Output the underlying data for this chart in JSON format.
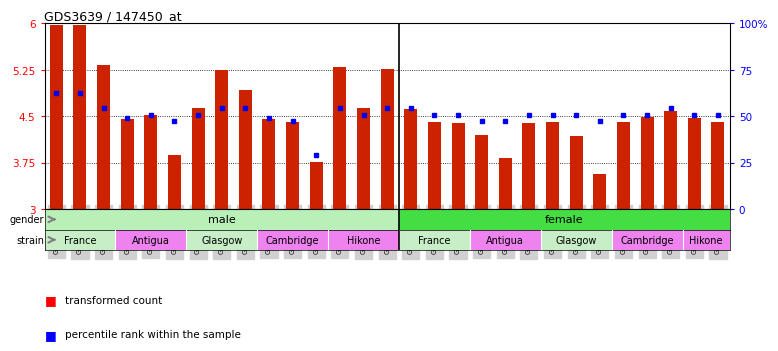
{
  "title": "GDS3639 / 147450_at",
  "samples": [
    "GSM231205",
    "GSM231206",
    "GSM231207",
    "GSM231211",
    "GSM231212",
    "GSM231213",
    "GSM231217",
    "GSM231218",
    "GSM231219",
    "GSM231223",
    "GSM231224",
    "GSM231225",
    "GSM231229",
    "GSM231230",
    "GSM231231",
    "GSM231208",
    "GSM231209",
    "GSM231210",
    "GSM231214",
    "GSM231215",
    "GSM231216",
    "GSM231220",
    "GSM231221",
    "GSM231222",
    "GSM231226",
    "GSM231227",
    "GSM231228",
    "GSM231232",
    "GSM231233"
  ],
  "bar_values": [
    5.97,
    5.97,
    5.33,
    4.45,
    4.52,
    3.87,
    4.63,
    5.25,
    4.93,
    4.45,
    4.41,
    3.77,
    5.29,
    4.63,
    5.27,
    4.62,
    4.41,
    4.39,
    4.2,
    3.82,
    4.39,
    4.41,
    4.18,
    3.57,
    4.41,
    4.49,
    4.58,
    4.48,
    4.41
  ],
  "percentile_values": [
    4.87,
    4.87,
    4.63,
    4.48,
    4.52,
    4.43,
    4.52,
    4.63,
    4.63,
    4.47,
    4.43,
    3.87,
    4.63,
    4.52,
    4.63,
    4.63,
    4.52,
    4.52,
    4.43,
    4.43,
    4.52,
    4.52,
    4.52,
    4.43,
    4.52,
    4.52,
    4.63,
    4.52,
    4.52
  ],
  "y_min": 3.0,
  "y_max": 6.0,
  "y_ticks": [
    3.0,
    3.75,
    4.5,
    5.25,
    6.0
  ],
  "y_tick_labels": [
    "3",
    "3.75",
    "4.5",
    "5.25",
    "6"
  ],
  "right_y_ticks": [
    0,
    25,
    50,
    75,
    100
  ],
  "right_y_tick_labels": [
    "0",
    "25",
    "50",
    "75",
    "100%"
  ],
  "strain_groups": [
    {
      "label": "France",
      "start": 0,
      "end": 3,
      "color": "#C8EEC8"
    },
    {
      "label": "Antigua",
      "start": 3,
      "end": 6,
      "color": "#EE82EE"
    },
    {
      "label": "Glasgow",
      "start": 6,
      "end": 9,
      "color": "#C8EEC8"
    },
    {
      "label": "Cambridge",
      "start": 9,
      "end": 12,
      "color": "#EE82EE"
    },
    {
      "label": "Hikone",
      "start": 12,
      "end": 15,
      "color": "#EE82EE"
    },
    {
      "label": "France",
      "start": 15,
      "end": 18,
      "color": "#C8EEC8"
    },
    {
      "label": "Antigua",
      "start": 18,
      "end": 21,
      "color": "#EE82EE"
    },
    {
      "label": "Glasgow",
      "start": 21,
      "end": 24,
      "color": "#C8EEC8"
    },
    {
      "label": "Cambridge",
      "start": 24,
      "end": 27,
      "color": "#EE82EE"
    },
    {
      "label": "Hikone",
      "start": 27,
      "end": 29,
      "color": "#EE82EE"
    }
  ],
  "bar_color": "#CC2200",
  "dot_color": "#0000EE",
  "male_color": "#B8F0B8",
  "female_color": "#44DD44",
  "tick_bg_color": "#D0D0D0"
}
